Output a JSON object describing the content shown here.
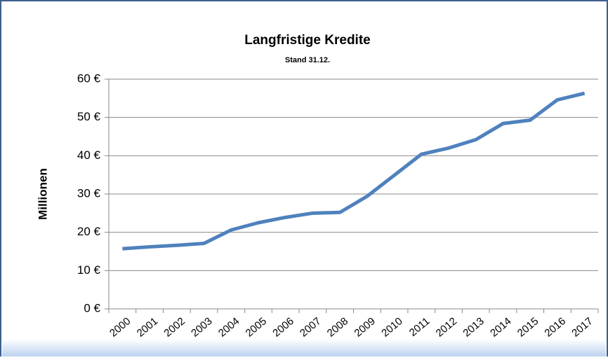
{
  "chart_data": {
    "type": "line",
    "title": "Langfristige Kredite",
    "subtitle": "Stand 31.12.",
    "ylabel": "Millionen",
    "categories": [
      "2000",
      "2001",
      "2002",
      "2003",
      "2004",
      "2005",
      "2006",
      "2007",
      "2008",
      "2009",
      "2010",
      "2011",
      "2012",
      "2013",
      "2014",
      "2015",
      "2016",
      "2017"
    ],
    "series": [
      {
        "name": "Langfristige Kredite",
        "color": "#4f81bd",
        "values": [
          15.7,
          16.2,
          16.6,
          17.1,
          20.6,
          22.5,
          23.9,
          25.0,
          25.2,
          29.4,
          34.9,
          40.4,
          42.0,
          44.2,
          48.4,
          49.3,
          54.6,
          56.3
        ]
      }
    ],
    "ylim": [
      0,
      60
    ],
    "yticks": [
      {
        "value": 0,
        "label": "0 €"
      },
      {
        "value": 10,
        "label": "10 €"
      },
      {
        "value": 20,
        "label": "20 €"
      },
      {
        "value": 30,
        "label": "30 €"
      },
      {
        "value": 40,
        "label": "40 €"
      },
      {
        "value": 50,
        "label": "50 €"
      },
      {
        "value": 60,
        "label": "60 €"
      }
    ],
    "grid": true
  }
}
